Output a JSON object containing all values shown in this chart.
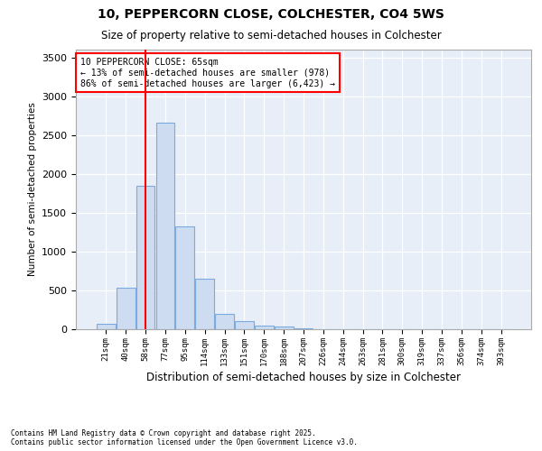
{
  "title": "10, PEPPERCORN CLOSE, COLCHESTER, CO4 5WS",
  "subtitle": "Size of property relative to semi-detached houses in Colchester",
  "xlabel": "Distribution of semi-detached houses by size in Colchester",
  "ylabel": "Number of semi-detached properties",
  "categories": [
    "21sqm",
    "40sqm",
    "58sqm",
    "77sqm",
    "95sqm",
    "114sqm",
    "133sqm",
    "151sqm",
    "170sqm",
    "188sqm",
    "207sqm",
    "226sqm",
    "244sqm",
    "263sqm",
    "281sqm",
    "300sqm",
    "319sqm",
    "337sqm",
    "356sqm",
    "374sqm",
    "393sqm"
  ],
  "bar_values": [
    70,
    535,
    1850,
    2660,
    1320,
    650,
    200,
    100,
    50,
    30,
    15,
    5,
    0,
    0,
    0,
    0,
    0,
    0,
    0,
    0,
    0
  ],
  "bar_color": "#cddcf0",
  "bar_edge_color": "#7aabe0",
  "vline_position": 2.0,
  "vline_color": "red",
  "annotation_text": "10 PEPPERCORN CLOSE: 65sqm\n← 13% of semi-detached houses are smaller (978)\n86% of semi-detached houses are larger (6,423) →",
  "ylim_max": 3600,
  "yticks": [
    0,
    500,
    1000,
    1500,
    2000,
    2500,
    3000,
    3500
  ],
  "bg_color": "#e8eef8",
  "grid_color": "white",
  "footer_line1": "Contains HM Land Registry data © Crown copyright and database right 2025.",
  "footer_line2": "Contains public sector information licensed under the Open Government Licence v3.0."
}
